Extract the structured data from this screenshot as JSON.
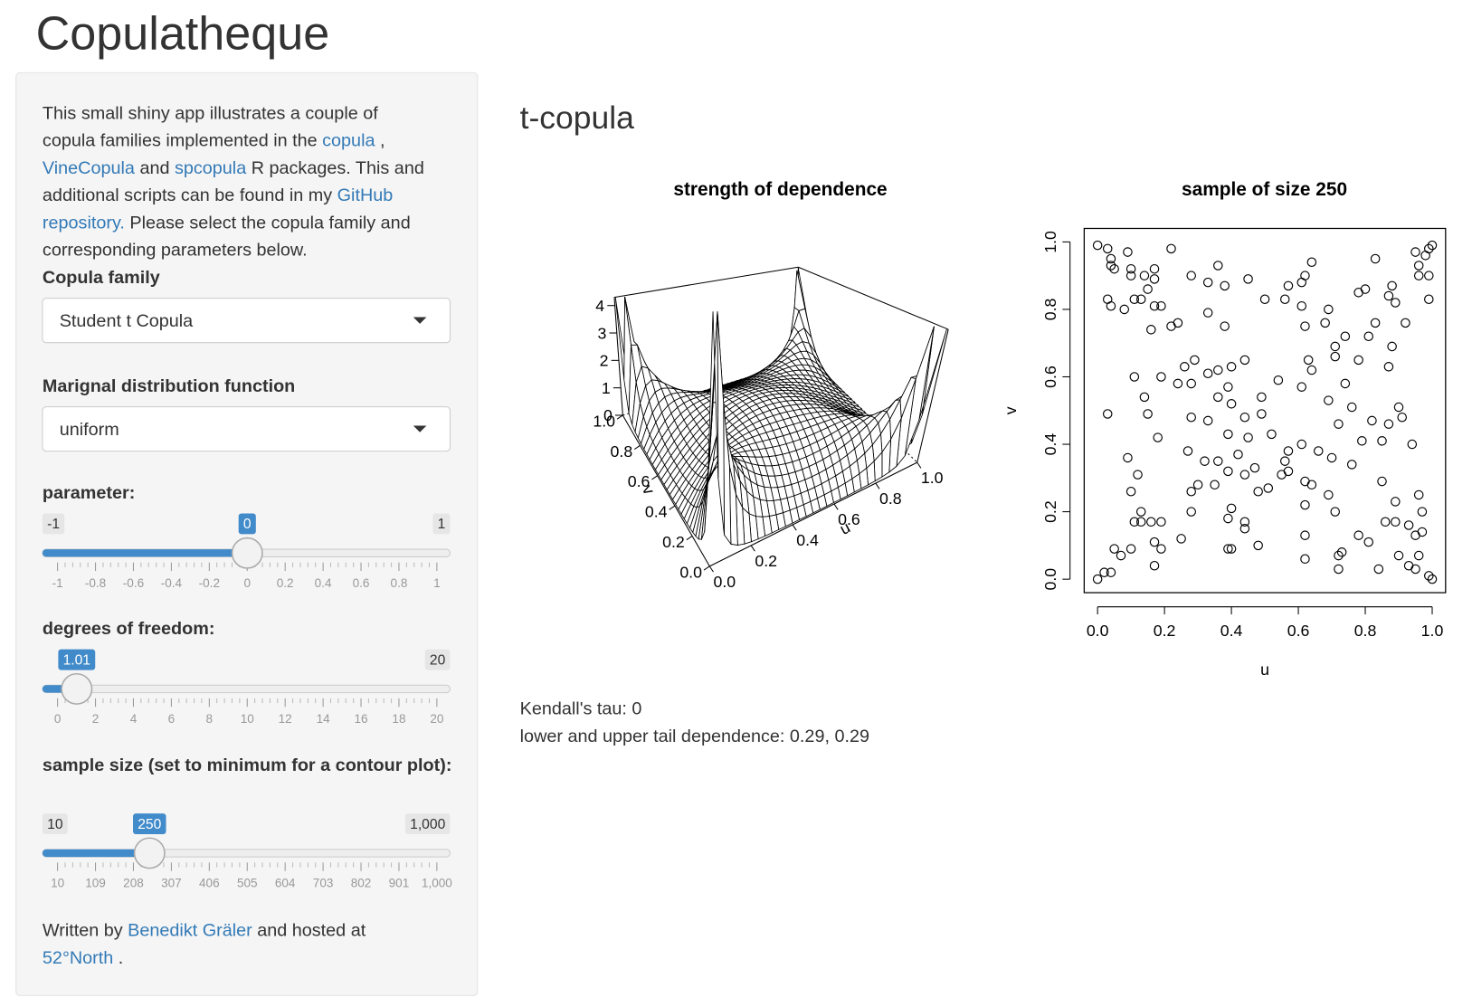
{
  "header": {
    "title": "Copulatheque"
  },
  "sidebar": {
    "link_color": "#337ab7",
    "intro": [
      [
        {
          "text": "This small shiny app illustrates a couple of"
        }
      ],
      [
        {
          "text": "copula families implemented in the "
        },
        {
          "text": "copula",
          "link": true
        },
        {
          "text": " ,"
        }
      ],
      [
        {
          "text": "VineCopula",
          "link": true
        },
        {
          "text": " and "
        },
        {
          "text": "spcopula",
          "link": true
        },
        {
          "text": " R packages. This and"
        }
      ],
      [
        {
          "text": "additional scripts can be found in my "
        },
        {
          "text": "GitHub",
          "link": true
        }
      ],
      [
        {
          "text": "repository.",
          "link": true
        },
        {
          "text": " Please select the copula family and"
        }
      ],
      [
        {
          "text": "corresponding parameters below."
        }
      ]
    ],
    "selects": [
      {
        "label": "Copula family",
        "value": "Student t Copula"
      },
      {
        "label": "Marignal distribution function",
        "value": "uniform"
      }
    ],
    "sliders": [
      {
        "label": "parameter:",
        "min": -1,
        "max": 1,
        "value": 0,
        "ticks": [
          -1,
          -0.8,
          -0.6,
          -0.4,
          -0.2,
          0,
          0.2,
          0.4,
          0.6,
          0.8,
          1
        ]
      },
      {
        "label": "degrees of freedom:",
        "max": 20,
        "value": 1.01,
        "ticks": [
          0,
          2,
          4,
          6,
          8,
          10,
          12,
          14,
          16,
          18,
          20
        ]
      },
      {
        "label": "sample size (set to minimum for a contour plot):",
        "min": 10,
        "max": {
          "value": 1000,
          "label": "1,000"
        },
        "value": 250,
        "ticks": [
          10,
          109,
          208,
          307,
          406,
          505,
          604,
          703,
          802,
          901,
          {
            "value": 1000,
            "label": "1,000"
          }
        ]
      }
    ],
    "footer": [
      [
        {
          "text": "Written by "
        },
        {
          "text": "Benedikt Gräler",
          "link": true
        },
        {
          "text": " and hosted at"
        }
      ],
      [
        {
          "text": "52°North",
          "link": true
        },
        {
          "text": " ."
        }
      ]
    ]
  },
  "main": {
    "heading": "t-copula",
    "summary": [
      "Kendall's tau: 0",
      "lower and upper tail dependence: 0.29, 0.29"
    ]
  },
  "chart_data": [
    {
      "type": "surface",
      "title": "strength of dependence",
      "xlabel": "u",
      "ylabel": "v",
      "xlim": [
        0,
        1
      ],
      "ylim": [
        0,
        1
      ],
      "zlim": [
        0,
        4.3
      ],
      "xticks": [
        {
          "value": 0,
          "label": "0.0"
        },
        0.2,
        0.4,
        0.6,
        0.8,
        {
          "value": 1,
          "label": "1.0"
        }
      ],
      "yticks": [
        {
          "value": 0,
          "label": "0.0"
        },
        0.2,
        0.4,
        0.6,
        0.8,
        {
          "value": 1,
          "label": "1.0"
        }
      ],
      "zticks": [
        0,
        1,
        2,
        3,
        4
      ]
    },
    {
      "type": "scatter",
      "title": "sample of size 250",
      "xlabel": "u",
      "ylabel": "v",
      "color": "#000000",
      "xlim": [
        -0.04,
        1.04
      ],
      "ylim": [
        -0.04,
        1.04
      ],
      "xticks": [
        {
          "value": 0,
          "label": "0.0"
        },
        0.2,
        0.4,
        0.6,
        0.8,
        {
          "value": 1,
          "label": "1.0"
        }
      ],
      "yticks": [
        {
          "value": 0,
          "label": "0.0"
        },
        0.2,
        0.4,
        0.6,
        0.8,
        {
          "value": 1,
          "label": "1.0"
        }
      ],
      "x": [
        0.0,
        0.03,
        0.04,
        0.04,
        0.05,
        0.09,
        0.1,
        0.1,
        0.14,
        0.17,
        0.17,
        0.22,
        0.03,
        0.04,
        0.08,
        0.11,
        0.13,
        0.15,
        0.17,
        0.19,
        0.16,
        0.22,
        0.28,
        0.33,
        0.36,
        0.38,
        0.45,
        0.5,
        0.57,
        0.61,
        0.64,
        0.62,
        0.83,
        0.95,
        0.99,
        1.0,
        0.98,
        0.96,
        0.99,
        0.96,
        0.88,
        0.8,
        0.78,
        0.99,
        0.87,
        0.89,
        0.69,
        0.68,
        0.62,
        0.56,
        0.61,
        0.33,
        0.38,
        0.24,
        0.29,
        0.33,
        0.4,
        0.44,
        0.26,
        0.19,
        0.11,
        0.14,
        0.03,
        0.15,
        0.18,
        0.24,
        0.28,
        0.36,
        0.39,
        0.36,
        0.28,
        0.33,
        0.4,
        0.44,
        0.39,
        0.49,
        0.54,
        0.61,
        0.64,
        0.63,
        0.71,
        0.74,
        0.71,
        0.81,
        0.83,
        0.92,
        0.88,
        0.78,
        0.74,
        0.69,
        0.72,
        0.76,
        0.79,
        0.82,
        0.85,
        0.87,
        0.91,
        0.87,
        0.9,
        0.94,
        0.85,
        0.76,
        0.7,
        0.66,
        0.61,
        0.57,
        0.56,
        0.52,
        0.49,
        0.45,
        0.42,
        0.36,
        0.32,
        0.27,
        0.28,
        0.3,
        0.35,
        0.39,
        0.44,
        0.47,
        0.51,
        0.57,
        0.62,
        0.64,
        0.69,
        0.71,
        0.62,
        0.62,
        0.55,
        0.48,
        0.4,
        0.39,
        0.44,
        0.44,
        0.39,
        0.4,
        0.48,
        0.19,
        0.28,
        0.25,
        0.16,
        0.11,
        0.1,
        0.12,
        0.09,
        0.13,
        0.13,
        0.17,
        0.19,
        0.05,
        0.07,
        0.1,
        0.17,
        0.0,
        0.02,
        0.04,
        0.62,
        0.72,
        0.73,
        0.72,
        0.78,
        0.81,
        0.84,
        0.89,
        0.9,
        0.93,
        0.93,
        0.95,
        0.96,
        0.97,
        0.99,
        1.0,
        0.97,
        0.96,
        0.89,
        0.86,
        0.95
      ],
      "y": [
        0.99,
        0.98,
        0.95,
        0.93,
        0.92,
        0.97,
        0.92,
        0.9,
        0.9,
        0.92,
        0.89,
        0.98,
        0.83,
        0.81,
        0.8,
        0.83,
        0.83,
        0.86,
        0.81,
        0.81,
        0.74,
        0.75,
        0.9,
        0.88,
        0.93,
        0.87,
        0.89,
        0.83,
        0.87,
        0.88,
        0.94,
        0.9,
        0.95,
        0.97,
        0.98,
        0.99,
        0.96,
        0.93,
        0.9,
        0.9,
        0.87,
        0.86,
        0.85,
        0.83,
        0.84,
        0.82,
        0.8,
        0.76,
        0.75,
        0.83,
        0.81,
        0.79,
        0.75,
        0.76,
        0.65,
        0.61,
        0.63,
        0.65,
        0.63,
        0.6,
        0.6,
        0.54,
        0.49,
        0.49,
        0.42,
        0.58,
        0.58,
        0.62,
        0.57,
        0.54,
        0.48,
        0.47,
        0.52,
        0.48,
        0.43,
        0.54,
        0.59,
        0.57,
        0.62,
        0.65,
        0.66,
        0.72,
        0.69,
        0.72,
        0.76,
        0.76,
        0.69,
        0.65,
        0.58,
        0.53,
        0.46,
        0.51,
        0.41,
        0.47,
        0.41,
        0.46,
        0.48,
        0.63,
        0.51,
        0.4,
        0.29,
        0.34,
        0.36,
        0.38,
        0.4,
        0.38,
        0.35,
        0.43,
        0.49,
        0.42,
        0.37,
        0.35,
        0.35,
        0.38,
        0.26,
        0.28,
        0.28,
        0.32,
        0.31,
        0.33,
        0.27,
        0.32,
        0.29,
        0.28,
        0.25,
        0.2,
        0.22,
        0.13,
        0.31,
        0.26,
        0.21,
        0.18,
        0.17,
        0.15,
        0.09,
        0.09,
        0.1,
        0.17,
        0.2,
        0.12,
        0.17,
        0.17,
        0.26,
        0.31,
        0.36,
        0.2,
        0.17,
        0.11,
        0.09,
        0.09,
        0.07,
        0.09,
        0.04,
        0.0,
        0.02,
        0.02,
        0.06,
        0.07,
        0.08,
        0.03,
        0.13,
        0.11,
        0.03,
        0.17,
        0.07,
        0.04,
        0.16,
        0.03,
        0.07,
        0.14,
        0.01,
        0.0,
        0.2,
        0.25,
        0.23,
        0.17,
        0.13
      ]
    }
  ]
}
